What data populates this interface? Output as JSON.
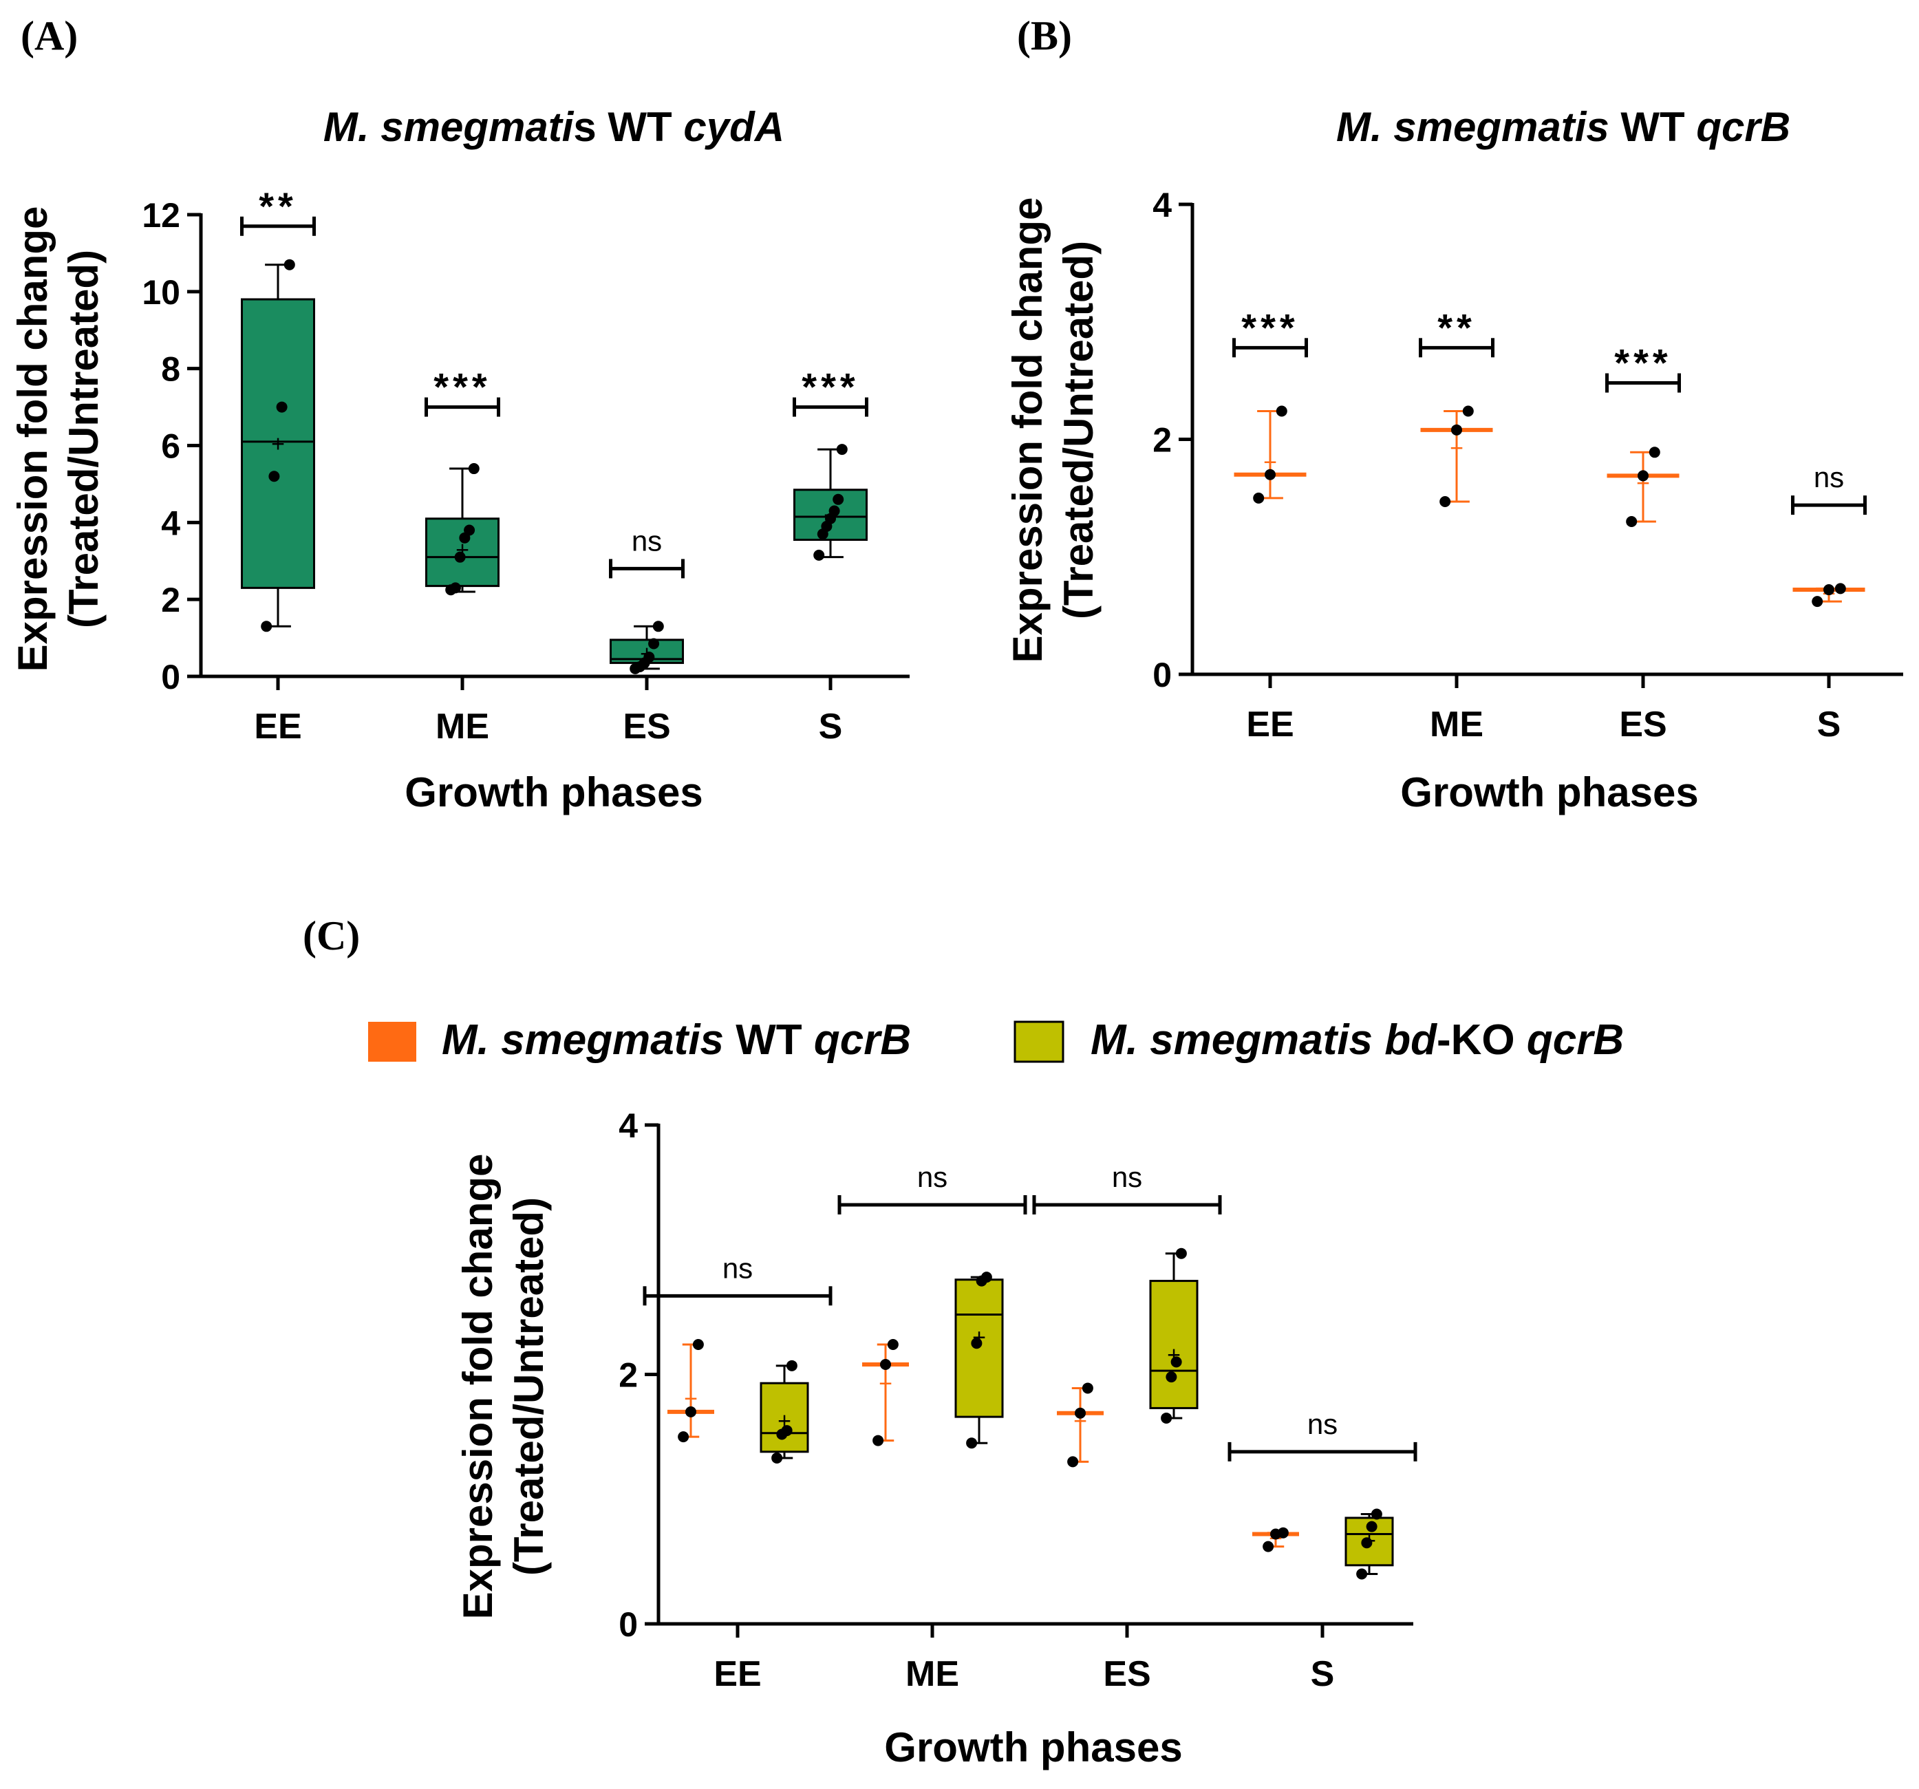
{
  "colors": {
    "wt_cydA": "#1a8c5f",
    "wt_qcrB": "#ff6a13",
    "bdko_qcrB": "#bfc000",
    "axis": "#000000",
    "point": "#000000"
  },
  "panels": {
    "A": {
      "label": "(A)",
      "title_italic_1": "M. smegmati",
      "title_plain_1": "s WT ",
      "title_italic_2": "cydA",
      "ylabel_line1": "Expression fold change",
      "ylabel_line2": "(Treated/Untreated)",
      "xlabel": "Growth phases"
    },
    "B": {
      "label": "(B)",
      "title_italic_1": "M. smegmatis",
      "title_plain_1": " WT ",
      "title_italic_2": "qcrB",
      "ylabel_line1": "Expression fold change",
      "ylabel_line2": "(Treated/Untreated)",
      "xlabel": "Growth phases"
    },
    "C": {
      "label": "(C)",
      "legend": [
        {
          "italic_1": "M. smegmatis",
          "plain_1": " WT ",
          "italic_2": "qcrB",
          "plain_2": "",
          "color_key": "wt_qcrB"
        },
        {
          "italic_1": "M. smegmatis bd",
          "plain_1": "-KO ",
          "italic_2": "qcrB",
          "plain_2": "",
          "color_key": "bdko_qcrB"
        }
      ],
      "ylabel_line1": "Expression fold change",
      "ylabel_line2": "(Treated/Untreated)",
      "xlabel": "Growth phases"
    }
  },
  "chart_data": [
    {
      "id": "A",
      "type": "box",
      "title": "M. smegmatis WT cydA",
      "xlabel": "Growth phases",
      "ylabel": "Expression fold change (Treated/Untreated)",
      "ylim": [
        0,
        12
      ],
      "yticks": [
        0,
        2,
        4,
        6,
        8,
        10,
        12
      ],
      "categories": [
        "EE",
        "ME",
        "ES",
        "S"
      ],
      "series": [
        {
          "name": "M. smegmatis WT cydA",
          "color_key": "wt_cydA",
          "style": "box",
          "boxes": [
            {
              "min": 1.3,
              "q1": 2.3,
              "median": 6.1,
              "q3": 9.8,
              "max": 10.7,
              "mean": 6.05,
              "points": [
                1.3,
                5.2,
                7.0,
                10.7
              ]
            },
            {
              "min": 2.2,
              "q1": 2.35,
              "median": 3.1,
              "q3": 4.1,
              "max": 5.4,
              "mean": 3.3,
              "points": [
                2.25,
                2.3,
                3.1,
                3.6,
                3.8,
                5.4
              ]
            },
            {
              "min": 0.2,
              "q1": 0.35,
              "median": 0.45,
              "q3": 0.95,
              "max": 1.3,
              "mean": 0.6,
              "points": [
                0.2,
                0.25,
                0.35,
                0.5,
                0.85,
                1.3
              ]
            },
            {
              "min": 3.1,
              "q1": 3.55,
              "median": 4.15,
              "q3": 4.85,
              "max": 5.9,
              "mean": 4.2,
              "points": [
                3.15,
                3.7,
                3.9,
                4.1,
                4.3,
                4.6,
                5.9
              ]
            }
          ]
        }
      ],
      "significance": [
        {
          "category": "EE",
          "label": "**",
          "y": 11.7
        },
        {
          "category": "ME",
          "label": "***",
          "y": 7.0
        },
        {
          "category": "ES",
          "label": "ns",
          "y": 2.8
        },
        {
          "category": "S",
          "label": "***",
          "y": 7.0
        }
      ]
    },
    {
      "id": "B",
      "type": "box",
      "title": "M. smegmatis WT qcrB",
      "xlabel": "Growth phases",
      "ylabel": "Expression fold change (Treated/Untreated)",
      "ylim": [
        0,
        4
      ],
      "yticks": [
        0,
        2,
        4
      ],
      "categories": [
        "EE",
        "ME",
        "ES",
        "S"
      ],
      "series": [
        {
          "name": "M. smegmatis WT qcrB",
          "color_key": "wt_qcrB",
          "style": "line",
          "boxes": [
            {
              "min": 1.5,
              "q1": 1.5,
              "median": 1.7,
              "q3": 2.24,
              "max": 2.24,
              "mean": 1.81,
              "points": [
                1.5,
                1.7,
                2.24
              ]
            },
            {
              "min": 1.47,
              "q1": 1.47,
              "median": 2.08,
              "q3": 2.24,
              "max": 2.24,
              "mean": 1.93,
              "points": [
                1.47,
                2.08,
                2.24
              ]
            },
            {
              "min": 1.3,
              "q1": 1.3,
              "median": 1.69,
              "q3": 1.89,
              "max": 1.89,
              "mean": 1.63,
              "points": [
                1.3,
                1.69,
                1.89
              ]
            },
            {
              "min": 0.62,
              "q1": 0.62,
              "median": 0.72,
              "q3": 0.73,
              "max": 0.73,
              "mean": 0.69,
              "points": [
                0.62,
                0.72,
                0.73
              ]
            }
          ]
        }
      ],
      "significance": [
        {
          "category": "EE",
          "label": "***",
          "y": 2.78
        },
        {
          "category": "ME",
          "label": "**",
          "y": 2.78
        },
        {
          "category": "ES",
          "label": "***",
          "y": 2.48
        },
        {
          "category": "S",
          "label": "ns",
          "y": 1.44
        }
      ]
    },
    {
      "id": "C",
      "type": "box",
      "xlabel": "Growth phases",
      "ylabel": "Expression fold change (Treated/Untreated)",
      "ylim": [
        0,
        4
      ],
      "yticks": [
        0,
        2,
        4
      ],
      "categories": [
        "EE",
        "ME",
        "ES",
        "S"
      ],
      "series": [
        {
          "name": "M. smegmatis WT qcrB",
          "color_key": "wt_qcrB",
          "style": "line",
          "boxes": [
            {
              "min": 1.5,
              "q1": 1.5,
              "median": 1.7,
              "q3": 2.24,
              "max": 2.24,
              "mean": 1.81,
              "points": [
                1.5,
                1.7,
                2.24
              ]
            },
            {
              "min": 1.47,
              "q1": 1.47,
              "median": 2.08,
              "q3": 2.24,
              "max": 2.24,
              "mean": 1.93,
              "points": [
                1.47,
                2.08,
                2.24
              ]
            },
            {
              "min": 1.3,
              "q1": 1.3,
              "median": 1.69,
              "q3": 1.89,
              "max": 1.89,
              "mean": 1.63,
              "points": [
                1.3,
                1.69,
                1.89
              ]
            },
            {
              "min": 0.62,
              "q1": 0.62,
              "median": 0.72,
              "q3": 0.73,
              "max": 0.73,
              "mean": 0.69,
              "points": [
                0.62,
                0.72,
                0.73
              ]
            }
          ]
        },
        {
          "name": "M. smegmatis bd-KO qcrB",
          "color_key": "bdko_qcrB",
          "style": "box",
          "boxes": [
            {
              "min": 1.33,
              "q1": 1.38,
              "median": 1.53,
              "q3": 1.93,
              "max": 2.07,
              "mean": 1.63,
              "points": [
                1.33,
                1.52,
                1.55,
                2.07
              ]
            },
            {
              "min": 1.45,
              "q1": 1.66,
              "median": 2.48,
              "q3": 2.76,
              "max": 2.78,
              "mean": 2.3,
              "points": [
                1.45,
                2.25,
                2.75,
                2.78
              ]
            },
            {
              "min": 1.65,
              "q1": 1.73,
              "median": 2.03,
              "q3": 2.75,
              "max": 2.97,
              "mean": 2.16,
              "points": [
                1.65,
                1.98,
                2.1,
                2.97
              ]
            },
            {
              "min": 0.4,
              "q1": 0.47,
              "median": 0.72,
              "q3": 0.85,
              "max": 0.88,
              "mean": 0.67,
              "points": [
                0.4,
                0.65,
                0.78,
                0.88
              ]
            }
          ]
        }
      ],
      "significance": [
        {
          "category": "EE",
          "label": "ns",
          "y": 2.63
        },
        {
          "category": "ME",
          "label": "ns",
          "y": 3.36
        },
        {
          "category": "ES",
          "label": "ns",
          "y": 3.36
        },
        {
          "category": "S",
          "label": "ns",
          "y": 1.38
        }
      ]
    }
  ]
}
